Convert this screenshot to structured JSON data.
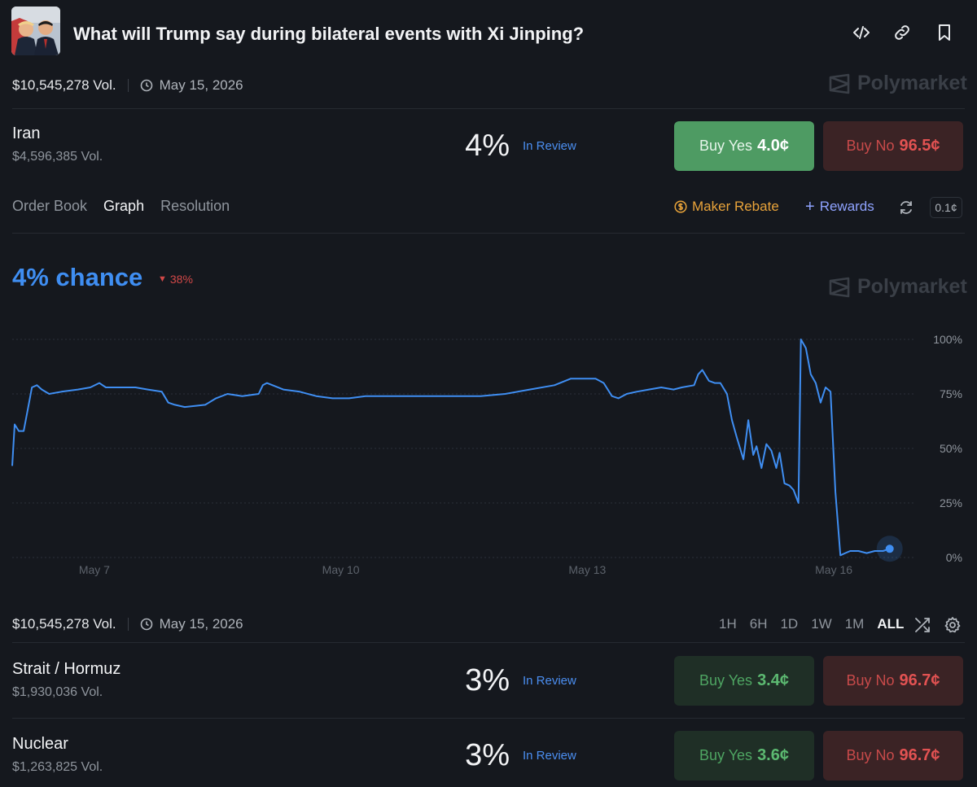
{
  "header": {
    "title": "What will Trump say during bilateral events with Xi Jinping?"
  },
  "event": {
    "volume": "$10,545,278 Vol.",
    "date": "May 15, 2026",
    "brand": "Polymarket"
  },
  "selected_market": {
    "name": "Iran",
    "volume": "$4,596,385 Vol.",
    "percent": "4%",
    "status": "In Review",
    "buy_yes_label": "Buy Yes",
    "buy_yes_price": "4.0¢",
    "buy_no_label": "Buy No",
    "buy_no_price": "96.5¢"
  },
  "tabs": [
    {
      "label": "Order Book"
    },
    {
      "label": "Graph"
    },
    {
      "label": "Resolution"
    }
  ],
  "tools": {
    "maker_rebate": "Maker Rebate",
    "rewards": "Rewards",
    "spread": "0.1¢"
  },
  "graph": {
    "chance": "4% chance",
    "change": "38%",
    "brand": "Polymarket"
  },
  "chart_data": {
    "type": "line",
    "series": [
      {
        "color": "#3f8ef2",
        "points": [
          [
            6.0,
            42
          ],
          [
            6.03,
            61
          ],
          [
            6.08,
            58
          ],
          [
            6.14,
            58
          ],
          [
            6.2,
            70
          ],
          [
            6.24,
            78
          ],
          [
            6.3,
            79
          ],
          [
            6.36,
            77
          ],
          [
            6.45,
            75
          ],
          [
            6.6,
            76
          ],
          [
            6.8,
            77
          ],
          [
            6.95,
            78
          ],
          [
            7.06,
            80
          ],
          [
            7.14,
            78
          ],
          [
            7.3,
            78
          ],
          [
            7.5,
            78
          ],
          [
            7.65,
            77
          ],
          [
            7.82,
            76
          ],
          [
            7.9,
            71
          ],
          [
            7.98,
            70
          ],
          [
            8.1,
            69
          ],
          [
            8.35,
            70
          ],
          [
            8.48,
            73
          ],
          [
            8.62,
            75
          ],
          [
            8.8,
            74
          ],
          [
            9.0,
            75
          ],
          [
            9.05,
            79
          ],
          [
            9.1,
            80
          ],
          [
            9.3,
            77
          ],
          [
            9.5,
            76
          ],
          [
            9.7,
            74
          ],
          [
            9.9,
            73
          ],
          [
            10.1,
            73
          ],
          [
            10.3,
            74
          ],
          [
            10.5,
            74
          ],
          [
            10.8,
            74
          ],
          [
            11.1,
            74
          ],
          [
            11.4,
            74
          ],
          [
            11.7,
            74
          ],
          [
            12.0,
            75
          ],
          [
            12.3,
            77
          ],
          [
            12.6,
            79
          ],
          [
            12.8,
            82
          ],
          [
            12.95,
            82
          ],
          [
            13.1,
            82
          ],
          [
            13.2,
            80
          ],
          [
            13.3,
            74
          ],
          [
            13.38,
            73
          ],
          [
            13.48,
            75
          ],
          [
            13.6,
            76
          ],
          [
            13.75,
            77
          ],
          [
            13.9,
            78
          ],
          [
            14.05,
            77
          ],
          [
            14.15,
            78
          ],
          [
            14.3,
            79
          ],
          [
            14.35,
            84
          ],
          [
            14.4,
            86
          ],
          [
            14.48,
            81
          ],
          [
            14.55,
            80
          ],
          [
            14.62,
            80
          ],
          [
            14.7,
            75
          ],
          [
            14.76,
            63
          ],
          [
            14.82,
            55
          ],
          [
            14.9,
            45
          ],
          [
            14.96,
            63
          ],
          [
            15.02,
            47
          ],
          [
            15.06,
            51
          ],
          [
            15.12,
            41
          ],
          [
            15.18,
            52
          ],
          [
            15.24,
            49
          ],
          [
            15.3,
            41
          ],
          [
            15.34,
            48
          ],
          [
            15.4,
            34
          ],
          [
            15.46,
            33
          ],
          [
            15.51,
            31
          ],
          [
            15.57,
            25
          ],
          [
            15.6,
            100
          ],
          [
            15.66,
            96
          ],
          [
            15.72,
            84
          ],
          [
            15.78,
            80
          ],
          [
            15.84,
            71
          ],
          [
            15.9,
            78
          ],
          [
            15.96,
            76
          ],
          [
            16.02,
            30
          ],
          [
            16.08,
            1
          ],
          [
            16.14,
            2
          ],
          [
            16.2,
            3
          ],
          [
            16.3,
            3
          ],
          [
            16.4,
            2
          ],
          [
            16.5,
            3
          ],
          [
            16.6,
            3
          ],
          [
            16.68,
            4
          ]
        ]
      }
    ],
    "x_ticks": [
      "May 7",
      "May 10",
      "May 13",
      "May 16"
    ],
    "y_ticks": [
      "100%",
      "75%",
      "50%",
      "25%",
      "0%"
    ],
    "xlim": [
      6.0,
      17.0
    ],
    "ylim": [
      0,
      100
    ],
    "grid": "horizontal dotted"
  },
  "footer": {
    "volume": "$10,545,278 Vol.",
    "date": "May 15, 2026"
  },
  "ranges": [
    {
      "label": "1H"
    },
    {
      "label": "6H"
    },
    {
      "label": "1D"
    },
    {
      "label": "1W"
    },
    {
      "label": "1M"
    },
    {
      "label": "ALL"
    }
  ],
  "markets": [
    {
      "name": "Strait / Hormuz",
      "volume": "$1,930,036 Vol.",
      "percent": "3%",
      "status": "In Review",
      "buy_yes_label": "Buy Yes",
      "buy_yes_price": "3.4¢",
      "buy_no_label": "Buy No",
      "buy_no_price": "96.7¢"
    },
    {
      "name": "Nuclear",
      "volume": "$1,263,825 Vol.",
      "percent": "3%",
      "status": "In Review",
      "buy_yes_label": "Buy Yes",
      "buy_yes_price": "3.6¢",
      "buy_no_label": "Buy No",
      "buy_no_price": "96.7¢"
    }
  ]
}
